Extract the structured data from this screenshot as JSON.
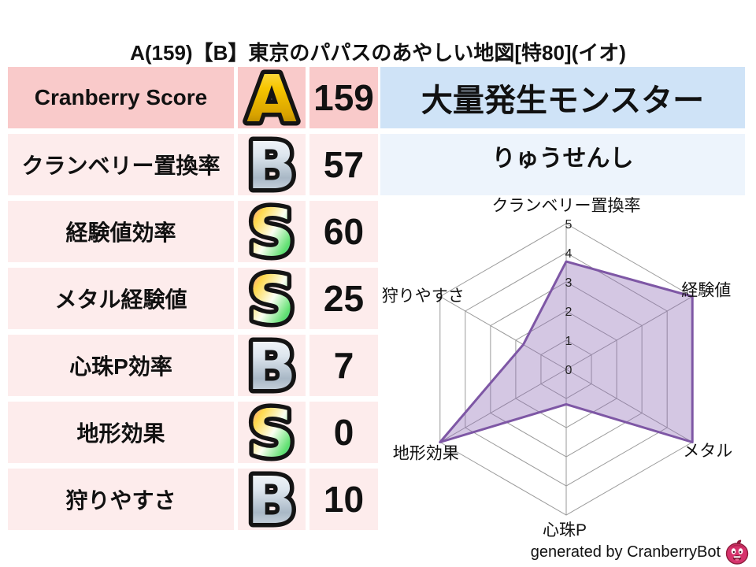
{
  "title": "A(159)【B】東京のパパスのあやしい地図[特80](イオ)",
  "stats_table": {
    "rows": [
      {
        "label": "Cranberry Score",
        "grade": "A",
        "value": "159"
      },
      {
        "label": "クランベリー置換率",
        "grade": "B",
        "value": "57"
      },
      {
        "label": "経験値効率",
        "grade": "S",
        "value": "60"
      },
      {
        "label": "メタル経験値",
        "grade": "S",
        "value": "25"
      },
      {
        "label": "心珠P効率",
        "grade": "B",
        "value": "7"
      },
      {
        "label": "地形効果",
        "grade": "S",
        "value": "0"
      },
      {
        "label": "狩りやすさ",
        "grade": "B",
        "value": "10"
      }
    ]
  },
  "monster_panel": {
    "header": "大量発生モンスター",
    "name": "りゅうせんし"
  },
  "chart_data": {
    "type": "radar",
    "categories": [
      "クランベリー置換率",
      "経験値",
      "メタル",
      "心珠P",
      "地形効果",
      "狩りやすさ"
    ],
    "values": [
      3.7,
      5,
      5,
      1.2,
      5,
      1.7
    ],
    "ticks": [
      0,
      1,
      2,
      3,
      4,
      5
    ],
    "rmax": 5,
    "grid": true,
    "legend": "none",
    "fill_color": "#8d6cb5",
    "fill_opacity": 0.38,
    "stroke_color": "#7e57a5",
    "grid_color": "#9a9a9a"
  },
  "footer": {
    "credit": "generated by CranberryBot",
    "logo_icon": "cranberry-face-icon"
  },
  "colors": {
    "header_row_bg": "#f9caca",
    "row_bg": "#fdecec",
    "monster_header_bg": "#cfe3f7",
    "monster_name_bg": "#edf4fc",
    "grade_gold": "#f6c500",
    "grade_silver": "#c3cfdb",
    "grade_rainbow": "multicolor",
    "badge_outline": "#141414"
  }
}
